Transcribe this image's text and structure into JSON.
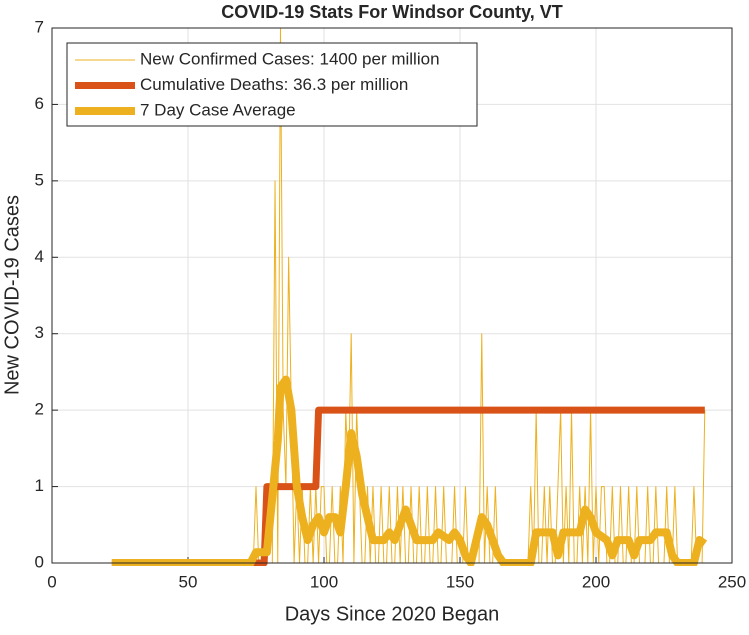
{
  "chart_data": {
    "type": "line",
    "title": "COVID-19 Stats For Windsor County, VT",
    "x_label": "Days Since 2020 Began",
    "y_label": "New COVID-19 Cases",
    "xlim": [
      0,
      250
    ],
    "xticks": [
      0,
      50,
      100,
      150,
      200,
      250
    ],
    "ylim": [
      0,
      7
    ],
    "yticks": [
      0,
      1,
      2,
      3,
      4,
      5,
      6,
      7
    ],
    "grid": true,
    "legend": "northwest",
    "series": [
      {
        "name": "New Confirmed Cases: 1400 per million",
        "color": "#EDB120",
        "x": [
          22,
          71,
          72,
          73,
          74,
          75,
          76,
          77,
          78,
          79,
          80,
          81,
          82,
          83,
          84,
          85,
          86,
          87,
          88,
          89,
          90,
          91,
          92,
          93,
          94,
          95,
          96,
          97,
          98,
          99,
          100,
          101,
          102,
          103,
          104,
          105,
          106,
          107,
          108,
          109,
          110,
          111,
          112,
          113,
          114,
          115,
          116,
          117,
          118,
          119,
          120,
          121,
          122,
          123,
          124,
          125,
          126,
          127,
          128,
          129,
          130,
          131,
          132,
          133,
          134,
          135,
          136,
          137,
          138,
          139,
          140,
          141,
          142,
          143,
          144,
          145,
          146,
          147,
          148,
          149,
          150,
          151,
          152,
          153,
          154,
          155,
          156,
          157,
          158,
          159,
          160,
          161,
          162,
          163,
          164,
          165,
          166,
          167,
          168,
          169,
          170,
          171,
          172,
          173,
          174,
          175,
          176,
          177,
          178,
          179,
          180,
          181,
          182,
          183,
          184,
          185,
          186,
          187,
          188,
          189,
          190,
          191,
          192,
          193,
          194,
          195,
          196,
          197,
          198,
          199,
          200,
          201,
          202,
          203,
          204,
          205,
          206,
          207,
          208,
          209,
          210,
          211,
          212,
          213,
          214,
          215,
          216,
          217,
          218,
          219,
          220,
          221,
          222,
          223,
          224,
          225,
          226,
          227,
          228,
          229,
          230,
          231,
          232,
          233,
          234,
          235,
          236,
          237,
          238,
          239,
          240
        ],
        "values": [
          0,
          0,
          0,
          0,
          0,
          1,
          0,
          0,
          1,
          0,
          0,
          0,
          5,
          0,
          7,
          2,
          1,
          4,
          2,
          0,
          1,
          0,
          1,
          0,
          0,
          1,
          0,
          1,
          0,
          1,
          1,
          0,
          0,
          1,
          0,
          0,
          1,
          0,
          2,
          1,
          3,
          0,
          2,
          1,
          0,
          0,
          1,
          0,
          1,
          0,
          0,
          1,
          0,
          0,
          1,
          0,
          0,
          1,
          0,
          1,
          0,
          0,
          1,
          0,
          0,
          1,
          0,
          0,
          1,
          0,
          0,
          1,
          0,
          0,
          1,
          0,
          0,
          0,
          1,
          0,
          0,
          0,
          1,
          0,
          0,
          0,
          0,
          0,
          3,
          0,
          1,
          0,
          0,
          1,
          0,
          0,
          0,
          0,
          0,
          0,
          0,
          0,
          0,
          0,
          0,
          0,
          1,
          0,
          2,
          0,
          0,
          1,
          0,
          1,
          0,
          0,
          1,
          2,
          0,
          1,
          0,
          2,
          0,
          0,
          1,
          0,
          1,
          0,
          2,
          0,
          1,
          0,
          1,
          1,
          0,
          0,
          1,
          0,
          0,
          1,
          0,
          0,
          1,
          0,
          0,
          1,
          0,
          0,
          0,
          1,
          0,
          0,
          1,
          0,
          0,
          0,
          1,
          0,
          0,
          1,
          0,
          0,
          0,
          0,
          0,
          0,
          1,
          0,
          0,
          0,
          2
        ]
      },
      {
        "name": "Cumulative Deaths: 36.3 per million",
        "color": "#D95319",
        "x": [
          22,
          78,
          79,
          97,
          98,
          240
        ],
        "values": [
          0,
          0,
          1,
          1,
          2,
          2
        ]
      },
      {
        "name": "7 Day Case Average",
        "color": "#EDB120",
        "x": [
          22,
          73,
          75,
          79,
          81,
          83,
          84,
          86,
          88,
          90,
          92,
          94,
          96,
          98,
          100,
          102,
          104,
          106,
          108,
          110,
          112,
          114,
          116,
          118,
          122,
          124,
          126,
          128,
          130,
          132,
          134,
          140,
          142,
          146,
          148,
          150,
          152,
          154,
          156,
          158,
          160,
          162,
          164,
          166,
          176,
          178,
          184,
          186,
          188,
          194,
          196,
          198,
          200,
          204,
          206,
          208,
          212,
          214,
          216,
          220,
          222,
          226,
          228,
          230,
          236,
          238,
          240
        ],
        "values": [
          0,
          0,
          0.14,
          0.14,
          0.86,
          1.6,
          2.3,
          2.4,
          2,
          1,
          0.6,
          0.3,
          0.5,
          0.6,
          0.4,
          0.6,
          0.6,
          0.4,
          1,
          1.7,
          1.4,
          0.9,
          0.6,
          0.3,
          0.3,
          0.4,
          0.3,
          0.5,
          0.7,
          0.5,
          0.3,
          0.3,
          0.4,
          0.3,
          0.4,
          0.3,
          0.1,
          0,
          0.3,
          0.6,
          0.5,
          0.3,
          0.1,
          0,
          0,
          0.4,
          0.4,
          0.1,
          0.4,
          0.4,
          0.7,
          0.6,
          0.4,
          0.3,
          0.1,
          0.3,
          0.3,
          0.1,
          0.3,
          0.3,
          0.4,
          0.4,
          0.1,
          0,
          0,
          0.3,
          0.25
        ]
      }
    ]
  }
}
